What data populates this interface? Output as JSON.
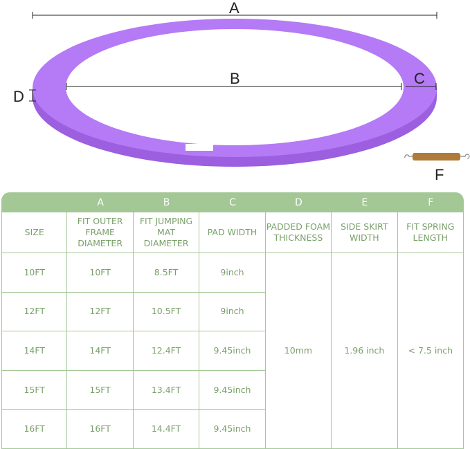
{
  "diagram": {
    "labels": {
      "a": "A",
      "b": "B",
      "c": "C",
      "d": "D",
      "f": "F"
    },
    "pad_color": "#b57af5",
    "pad_side_color": "#9b5fe0"
  },
  "table": {
    "letters": [
      "",
      "A",
      "B",
      "C",
      "D",
      "E",
      "F"
    ],
    "headers": [
      "SIZE",
      "FIT OUTER FRAME DIAMETER",
      "FIT JUMPING MAT DIAMETER",
      "PAD WIDTH",
      "PADDED FOAM THICKNESS",
      "SIDE SKIRT WIDTH",
      "FIT SPRING LENGTH"
    ],
    "rows": [
      [
        "10FT",
        "10FT",
        "8.5FT",
        "9inch"
      ],
      [
        "12FT",
        "12FT",
        "10.5FT",
        "9inch"
      ],
      [
        "14FT",
        "14FT",
        "12.4FT",
        "9.45inch"
      ],
      [
        "15FT",
        "15FT",
        "13.4FT",
        "9.45inch"
      ],
      [
        "16FT",
        "16FT",
        "14.4FT",
        "9.45inch"
      ]
    ],
    "shared": {
      "thickness": "10mm",
      "skirt": "1.96 inch",
      "spring": "< 7.5 inch"
    },
    "header_color": "#a3c795",
    "text_color": "#7aa06a"
  }
}
